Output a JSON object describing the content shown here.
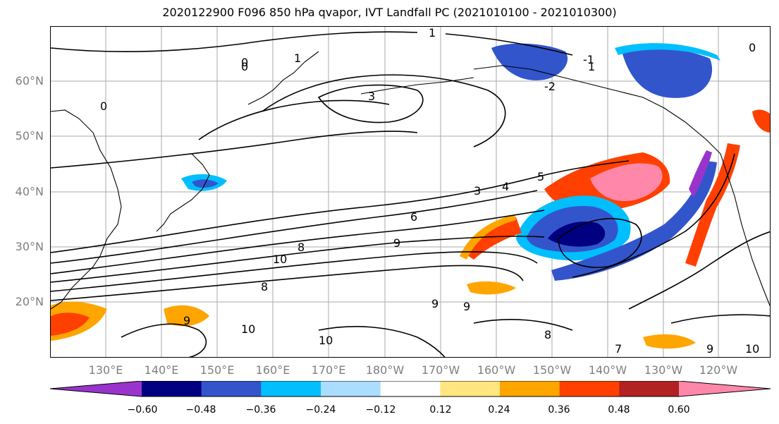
{
  "title": "2020122900 F096 850 hPa qvapor, IVT Landfall PC (2021010100 - 2021010300)",
  "lat_labels": [
    "60°N",
    "50°N",
    "40°N",
    "30°N",
    "20°N"
  ],
  "lon_labels": [
    "130°E",
    "140°E",
    "150°E",
    "160°E",
    "170°E",
    "180°W",
    "170°W",
    "160°W",
    "150°W",
    "140°W",
    "130°W",
    "120°W"
  ],
  "colorbar": {
    "colors": [
      "#9933cc",
      "#000080",
      "#3355cc",
      "#00bfff",
      "#aaddff",
      "#ffffff",
      "#ffe680",
      "#ffa500",
      "#ff4000",
      "#b22222",
      "#ff88aa"
    ],
    "tick_labels": [
      "−0.60",
      "−0.48",
      "−0.36",
      "−0.24",
      "−0.12",
      "0.12",
      "0.24",
      "0.36",
      "0.48",
      "0.60"
    ]
  },
  "contour_labels": [
    "1",
    "0",
    "1",
    "-1",
    "-2",
    "0",
    "3",
    "0",
    "0",
    "3",
    "4",
    "5",
    "6",
    "8",
    "9",
    "10",
    "10",
    "8",
    "10",
    "9",
    "9",
    "8",
    "7",
    "9",
    "10",
    "9",
    "1"
  ],
  "map": {
    "projection": "cylindrical",
    "lon_range": [
      "125°E",
      "115°W"
    ],
    "lat_range": [
      "10°N",
      "70°N"
    ],
    "gridlines": true
  }
}
